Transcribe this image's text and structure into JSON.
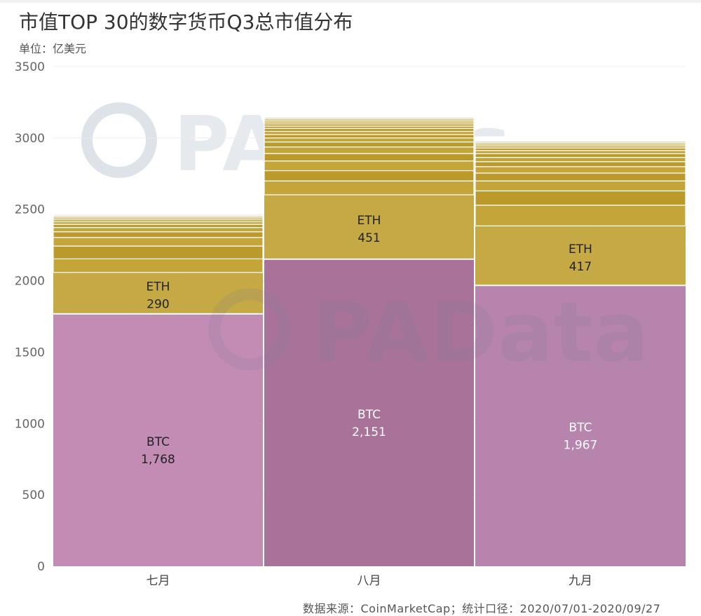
{
  "title": "市值TOP 30的数字货币Q3总市值分布",
  "subtitle": "单位：亿美元",
  "source": "数据来源：CoinMarketCap；统计口径：2020/07/01-2020/09/27",
  "watermarks": [
    "PANews",
    "PAData"
  ],
  "colors": {
    "btc_jul": "#c38cb4",
    "btc_aug": "#a97399",
    "btc_sep": "#b784ad",
    "eth": "#c5a944",
    "others_a": "#c4a53a",
    "others_b": "#bb9a2b"
  },
  "chart_data": {
    "type": "bar",
    "stacked": true,
    "categories": [
      "七月",
      "八月",
      "九月"
    ],
    "ylim": [
      0,
      3500
    ],
    "yticks": [
      0,
      500,
      1000,
      1500,
      2000,
      2500,
      3000,
      3500
    ],
    "grid": true,
    "series": [
      {
        "name": "BTC",
        "values": [
          1768,
          2151,
          1967
        ],
        "labels": [
          "1,768",
          "2,151",
          "1,967"
        ]
      },
      {
        "name": "ETH",
        "values": [
          290,
          451,
          417
        ],
        "labels": [
          "290",
          "451",
          "417"
        ]
      }
    ],
    "other_segments": [
      [
        95,
        90,
        60,
        40,
        30,
        22,
        18,
        14,
        12,
        10,
        8,
        7,
        6,
        5,
        4,
        3,
        3,
        2,
        2,
        2,
        2,
        2,
        1,
        1,
        1,
        1,
        1,
        1
      ],
      [
        97,
        72,
        68,
        52,
        46,
        35,
        28,
        24,
        22,
        20,
        17,
        15,
        14,
        12,
        10,
        8,
        6,
        5,
        4,
        3,
        3,
        3,
        2,
        2,
        2,
        1,
        1,
        1
      ],
      [
        145,
        100,
        70,
        55,
        45,
        35,
        30,
        26,
        22,
        18,
        15,
        12,
        10,
        8,
        6,
        5,
        4,
        3,
        3,
        2,
        2,
        2,
        1,
        1,
        1,
        1,
        1,
        1
      ]
    ]
  }
}
